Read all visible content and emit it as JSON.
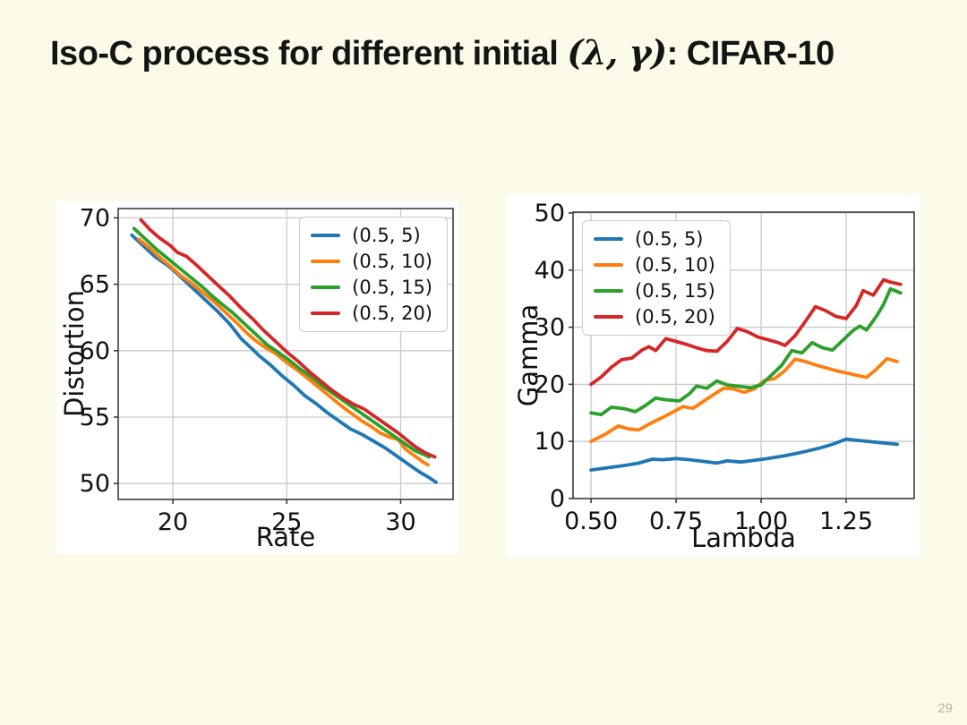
{
  "slide": {
    "title": {
      "pre": "Iso-C process for different initial ",
      "math": "(λ, γ)",
      "post": ": CIFAR-10"
    },
    "page_number": "29"
  },
  "palette": {
    "blue": "#1f77b4",
    "orange": "#ff7f0e",
    "green": "#2ca02c",
    "red": "#d62728",
    "grid": "#c9c9c9",
    "spine": "#3c3c3c"
  },
  "chart_data": [
    {
      "type": "line",
      "title": "",
      "xlabel": "Rate",
      "ylabel": "Distortion",
      "xlim": [
        17.6,
        32.3
      ],
      "ylim": [
        48.8,
        70.7
      ],
      "xticks": [
        20,
        25,
        30
      ],
      "xtick_labels": [
        "20",
        "25",
        "30"
      ],
      "yticks": [
        50,
        55,
        60,
        65,
        70
      ],
      "ytick_labels": [
        "50",
        "55",
        "60",
        "65",
        "70"
      ],
      "grid": true,
      "legend_position": "top-right",
      "series": [
        {
          "name": "(0.5, 5)",
          "color": "#1f77b4",
          "points": [
            [
              18.2,
              68.7
            ],
            [
              18.7,
              67.9
            ],
            [
              19.2,
              67.1
            ],
            [
              19.7,
              66.5
            ],
            [
              20.0,
              66.1
            ],
            [
              20.5,
              65.3
            ],
            [
              21.0,
              64.5
            ],
            [
              21.5,
              63.7
            ],
            [
              22.0,
              62.9
            ],
            [
              22.5,
              62.0
            ],
            [
              23.0,
              60.9
            ],
            [
              23.5,
              60.1
            ],
            [
              23.8,
              59.6
            ],
            [
              24.3,
              58.9
            ],
            [
              24.8,
              58.1
            ],
            [
              25.3,
              57.4
            ],
            [
              25.8,
              56.6
            ],
            [
              26.3,
              56.0
            ],
            [
              26.8,
              55.3
            ],
            [
              27.3,
              54.7
            ],
            [
              27.8,
              54.1
            ],
            [
              28.3,
              53.7
            ],
            [
              28.8,
              53.2
            ],
            [
              29.3,
              52.7
            ],
            [
              29.8,
              52.1
            ],
            [
              30.3,
              51.5
            ],
            [
              30.8,
              50.9
            ],
            [
              31.2,
              50.5
            ],
            [
              31.55,
              50.1
            ]
          ]
        },
        {
          "name": "(0.5, 10)",
          "color": "#ff7f0e",
          "points": [
            [
              18.5,
              68.4
            ],
            [
              19.0,
              67.7
            ],
            [
              19.5,
              66.9
            ],
            [
              20.0,
              66.2
            ],
            [
              20.3,
              65.7
            ],
            [
              20.8,
              65.1
            ],
            [
              21.3,
              64.4
            ],
            [
              21.8,
              63.7
            ],
            [
              22.3,
              62.9
            ],
            [
              22.8,
              62.1
            ],
            [
              23.2,
              61.4
            ],
            [
              23.6,
              60.8
            ],
            [
              24.0,
              60.3
            ],
            [
              24.5,
              59.8
            ],
            [
              25.0,
              59.1
            ],
            [
              25.5,
              58.5
            ],
            [
              26.0,
              57.8
            ],
            [
              26.5,
              57.1
            ],
            [
              27.0,
              56.4
            ],
            [
              27.5,
              55.7
            ],
            [
              27.9,
              55.2
            ],
            [
              28.3,
              54.7
            ],
            [
              28.7,
              54.3
            ],
            [
              29.1,
              53.8
            ],
            [
              29.5,
              53.5
            ],
            [
              29.9,
              53.3
            ],
            [
              30.2,
              52.6
            ],
            [
              30.6,
              52.1
            ],
            [
              31.0,
              51.6
            ],
            [
              31.2,
              51.4
            ]
          ]
        },
        {
          "name": "(0.5, 15)",
          "color": "#2ca02c",
          "points": [
            [
              18.3,
              69.2
            ],
            [
              18.8,
              68.4
            ],
            [
              19.3,
              67.6
            ],
            [
              19.8,
              66.9
            ],
            [
              20.3,
              66.2
            ],
            [
              20.8,
              65.5
            ],
            [
              21.3,
              64.8
            ],
            [
              21.8,
              64.0
            ],
            [
              22.3,
              63.3
            ],
            [
              22.6,
              62.9
            ],
            [
              23.1,
              62.1
            ],
            [
              23.6,
              61.3
            ],
            [
              24.1,
              60.5
            ],
            [
              24.6,
              59.9
            ],
            [
              25.1,
              59.3
            ],
            [
              25.6,
              58.6
            ],
            [
              26.1,
              58.0
            ],
            [
              26.6,
              57.3
            ],
            [
              27.1,
              56.7
            ],
            [
              27.6,
              56.1
            ],
            [
              28.1,
              55.5
            ],
            [
              28.6,
              54.9
            ],
            [
              29.1,
              54.3
            ],
            [
              29.6,
              53.7
            ],
            [
              30.1,
              53.1
            ],
            [
              30.6,
              52.5
            ],
            [
              31.0,
              52.2
            ],
            [
              31.25,
              52.0
            ]
          ]
        },
        {
          "name": "(0.5, 20)",
          "color": "#d62728",
          "points": [
            [
              18.6,
              69.85
            ],
            [
              19.0,
              69.1
            ],
            [
              19.4,
              68.5
            ],
            [
              19.9,
              67.9
            ],
            [
              20.2,
              67.4
            ],
            [
              20.6,
              67.1
            ],
            [
              21.0,
              66.5
            ],
            [
              21.5,
              65.7
            ],
            [
              22.0,
              64.9
            ],
            [
              22.5,
              64.1
            ],
            [
              23.0,
              63.2
            ],
            [
              23.5,
              62.4
            ],
            [
              24.0,
              61.5
            ],
            [
              24.5,
              60.7
            ],
            [
              25.0,
              59.9
            ],
            [
              25.5,
              59.2
            ],
            [
              26.0,
              58.4
            ],
            [
              26.5,
              57.7
            ],
            [
              27.0,
              57.0
            ],
            [
              27.5,
              56.4
            ],
            [
              27.9,
              56.0
            ],
            [
              28.4,
              55.6
            ],
            [
              28.9,
              55.0
            ],
            [
              29.4,
              54.4
            ],
            [
              29.9,
              53.8
            ],
            [
              30.4,
              53.1
            ],
            [
              30.7,
              52.7
            ],
            [
              31.1,
              52.3
            ],
            [
              31.5,
              52.0
            ]
          ]
        }
      ]
    },
    {
      "type": "line",
      "title": "",
      "xlabel": "Lambda",
      "ylabel": "Gamma",
      "xlim": [
        0.447,
        1.45
      ],
      "ylim": [
        0,
        50.15
      ],
      "xticks": [
        0.5,
        0.75,
        1.0,
        1.25
      ],
      "xtick_labels": [
        "0.50",
        "0.75",
        "1.00",
        "1.25"
      ],
      "yticks": [
        0,
        10,
        20,
        30,
        40,
        50
      ],
      "ytick_labels": [
        "0",
        "10",
        "20",
        "30",
        "40",
        "50"
      ],
      "grid": true,
      "legend_position": "top-left",
      "series": [
        {
          "name": "(0.5, 5)",
          "color": "#1f77b4",
          "points": [
            [
              0.5,
              5.0
            ],
            [
              0.55,
              5.4
            ],
            [
              0.6,
              5.8
            ],
            [
              0.64,
              6.2
            ],
            [
              0.68,
              6.9
            ],
            [
              0.71,
              6.8
            ],
            [
              0.75,
              7.0
            ],
            [
              0.79,
              6.8
            ],
            [
              0.83,
              6.5
            ],
            [
              0.87,
              6.2
            ],
            [
              0.9,
              6.6
            ],
            [
              0.94,
              6.4
            ],
            [
              0.98,
              6.7
            ],
            [
              1.02,
              7.0
            ],
            [
              1.07,
              7.5
            ],
            [
              1.12,
              8.1
            ],
            [
              1.17,
              8.8
            ],
            [
              1.21,
              9.5
            ],
            [
              1.25,
              10.4
            ],
            [
              1.3,
              10.1
            ],
            [
              1.35,
              9.8
            ],
            [
              1.4,
              9.5
            ]
          ]
        },
        {
          "name": "(0.5, 10)",
          "color": "#ff7f0e",
          "points": [
            [
              0.5,
              10.0
            ],
            [
              0.54,
              11.2
            ],
            [
              0.58,
              12.7
            ],
            [
              0.61,
              12.2
            ],
            [
              0.64,
              12.0
            ],
            [
              0.67,
              13.0
            ],
            [
              0.71,
              14.2
            ],
            [
              0.74,
              15.1
            ],
            [
              0.77,
              16.1
            ],
            [
              0.8,
              15.8
            ],
            [
              0.83,
              17.0
            ],
            [
              0.86,
              18.2
            ],
            [
              0.89,
              19.3
            ],
            [
              0.92,
              19.2
            ],
            [
              0.95,
              18.6
            ],
            [
              0.98,
              19.2
            ],
            [
              1.01,
              20.7
            ],
            [
              1.04,
              21.0
            ],
            [
              1.07,
              22.4
            ],
            [
              1.1,
              24.4
            ],
            [
              1.13,
              24.0
            ],
            [
              1.16,
              23.4
            ],
            [
              1.19,
              22.9
            ],
            [
              1.22,
              22.4
            ],
            [
              1.25,
              22.0
            ],
            [
              1.28,
              21.6
            ],
            [
              1.31,
              21.2
            ],
            [
              1.34,
              22.7
            ],
            [
              1.37,
              24.5
            ],
            [
              1.4,
              24.0
            ]
          ]
        },
        {
          "name": "(0.5, 15)",
          "color": "#2ca02c",
          "points": [
            [
              0.5,
              15.0
            ],
            [
              0.53,
              14.7
            ],
            [
              0.56,
              16.0
            ],
            [
              0.6,
              15.7
            ],
            [
              0.63,
              15.2
            ],
            [
              0.66,
              16.3
            ],
            [
              0.69,
              17.6
            ],
            [
              0.72,
              17.3
            ],
            [
              0.76,
              17.1
            ],
            [
              0.79,
              18.4
            ],
            [
              0.81,
              19.7
            ],
            [
              0.84,
              19.3
            ],
            [
              0.87,
              20.6
            ],
            [
              0.9,
              19.9
            ],
            [
              0.94,
              19.6
            ],
            [
              0.97,
              19.4
            ],
            [
              1.0,
              19.9
            ],
            [
              1.03,
              21.6
            ],
            [
              1.06,
              23.3
            ],
            [
              1.09,
              25.9
            ],
            [
              1.12,
              25.5
            ],
            [
              1.15,
              27.3
            ],
            [
              1.18,
              26.4
            ],
            [
              1.21,
              26.0
            ],
            [
              1.24,
              27.7
            ],
            [
              1.27,
              29.4
            ],
            [
              1.29,
              30.2
            ],
            [
              1.31,
              29.5
            ],
            [
              1.34,
              32.0
            ],
            [
              1.36,
              34.0
            ],
            [
              1.38,
              36.7
            ],
            [
              1.41,
              36.0
            ]
          ]
        },
        {
          "name": "(0.5, 20)",
          "color": "#d62728",
          "points": [
            [
              0.5,
              20.0
            ],
            [
              0.53,
              21.3
            ],
            [
              0.56,
              23.0
            ],
            [
              0.59,
              24.3
            ],
            [
              0.62,
              24.6
            ],
            [
              0.65,
              26.0
            ],
            [
              0.67,
              26.6
            ],
            [
              0.69,
              25.9
            ],
            [
              0.72,
              28.0
            ],
            [
              0.75,
              27.5
            ],
            [
              0.78,
              27.0
            ],
            [
              0.81,
              26.4
            ],
            [
              0.84,
              25.9
            ],
            [
              0.87,
              25.8
            ],
            [
              0.9,
              27.5
            ],
            [
              0.93,
              29.8
            ],
            [
              0.96,
              29.2
            ],
            [
              0.99,
              28.3
            ],
            [
              1.02,
              27.8
            ],
            [
              1.05,
              27.3
            ],
            [
              1.07,
              26.8
            ],
            [
              1.1,
              28.5
            ],
            [
              1.13,
              31.0
            ],
            [
              1.16,
              33.6
            ],
            [
              1.19,
              32.9
            ],
            [
              1.22,
              31.9
            ],
            [
              1.25,
              31.5
            ],
            [
              1.28,
              33.8
            ],
            [
              1.3,
              36.4
            ],
            [
              1.33,
              35.6
            ],
            [
              1.36,
              38.3
            ],
            [
              1.38,
              37.9
            ],
            [
              1.41,
              37.5
            ]
          ]
        }
      ]
    }
  ]
}
